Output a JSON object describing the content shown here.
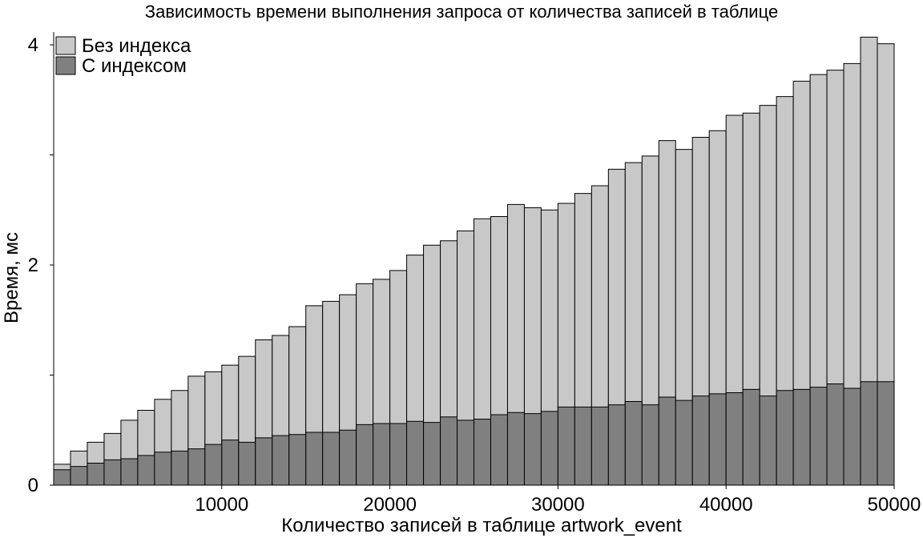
{
  "chart_data": {
    "type": "bar",
    "stacking": "overlay",
    "title": "Зависимость времени выполнения запроса от количества записей в таблице",
    "xlabel": "Количество записей в таблице artwork_event",
    "ylabel": "Время, мс",
    "xlim": [
      0,
      50000
    ],
    "ylim": [
      0,
      4.1
    ],
    "xticks": [
      10000,
      20000,
      30000,
      40000,
      50000
    ],
    "yticks": [
      0,
      2,
      4
    ],
    "yticks_unlabeled": [
      1,
      3
    ],
    "grid": false,
    "legend_position": "top-left",
    "x": [
      1000,
      2000,
      3000,
      4000,
      5000,
      6000,
      7000,
      8000,
      9000,
      10000,
      11000,
      12000,
      13000,
      14000,
      15000,
      16000,
      17000,
      18000,
      19000,
      20000,
      21000,
      22000,
      23000,
      24000,
      25000,
      26000,
      27000,
      28000,
      29000,
      30000,
      31000,
      32000,
      33000,
      34000,
      35000,
      36000,
      37000,
      38000,
      39000,
      40000,
      41000,
      42000,
      43000,
      44000,
      45000,
      46000,
      47000,
      48000,
      49000,
      50000
    ],
    "series": [
      {
        "name": "Без индекса",
        "color": "#c8c8c8",
        "values": [
          0.19,
          0.31,
          0.39,
          0.47,
          0.59,
          0.68,
          0.78,
          0.86,
          0.99,
          1.03,
          1.09,
          1.17,
          1.32,
          1.36,
          1.44,
          1.63,
          1.67,
          1.73,
          1.83,
          1.87,
          1.95,
          2.09,
          2.18,
          2.22,
          2.31,
          2.42,
          2.44,
          2.55,
          2.52,
          2.5,
          2.56,
          2.65,
          2.72,
          2.87,
          2.93,
          2.99,
          3.13,
          3.05,
          3.16,
          3.22,
          3.36,
          3.38,
          3.45,
          3.53,
          3.67,
          3.73,
          3.77,
          3.83,
          4.07,
          4.01
        ]
      },
      {
        "name": "С индексом",
        "color": "#808080",
        "values": [
          0.14,
          0.17,
          0.2,
          0.23,
          0.24,
          0.27,
          0.3,
          0.31,
          0.33,
          0.37,
          0.41,
          0.39,
          0.43,
          0.45,
          0.46,
          0.48,
          0.48,
          0.5,
          0.55,
          0.56,
          0.56,
          0.58,
          0.57,
          0.62,
          0.59,
          0.6,
          0.64,
          0.66,
          0.65,
          0.67,
          0.71,
          0.71,
          0.71,
          0.73,
          0.76,
          0.73,
          0.8,
          0.77,
          0.81,
          0.83,
          0.84,
          0.87,
          0.81,
          0.86,
          0.87,
          0.89,
          0.92,
          0.88,
          0.94,
          0.94
        ]
      }
    ]
  }
}
